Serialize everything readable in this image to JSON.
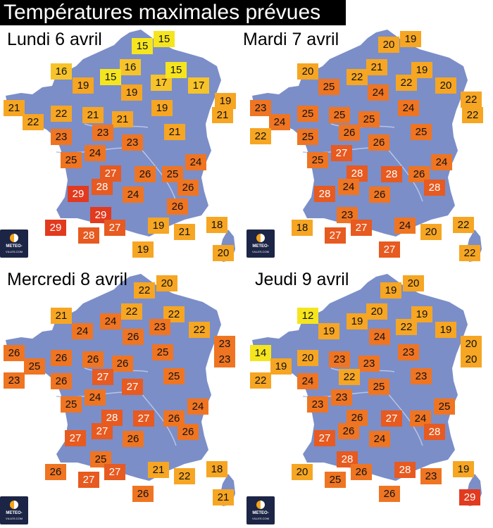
{
  "title": "Températures maximales prévues",
  "logo": {
    "line1": "METEO-",
    "line2": "VILLES.COM"
  },
  "colors": {
    "land": "#7b8ec8",
    "t12_15": "#f5e51f",
    "t16_17": "#f7c32a",
    "t18_22": "#f6a623",
    "t23_26": "#ef7522",
    "t27_28": "#e75a20",
    "t29": "#e23a1e"
  },
  "panels": [
    {
      "label": "Lundi 6 avril",
      "temps": [
        15,
        15,
        16,
        16,
        15,
        19,
        19,
        17,
        15,
        17,
        21,
        22,
        22,
        21,
        21,
        19,
        19,
        21,
        23,
        23,
        23,
        21,
        25,
        24,
        27,
        24,
        26,
        25,
        28,
        29,
        24,
        26,
        29,
        29,
        28,
        27,
        26,
        19,
        21,
        18,
        19,
        20
      ]
    },
    {
      "label": "Mardi 7 avril",
      "temps": [
        20,
        19,
        20,
        21,
        25,
        22,
        22,
        19,
        20,
        24,
        22,
        23,
        24,
        25,
        25,
        25,
        24,
        22,
        25,
        26,
        26,
        25,
        25,
        27,
        24,
        28,
        28,
        26,
        28,
        24,
        26,
        28,
        23,
        27,
        24,
        20,
        22,
        18,
        27,
        27,
        22,
        22
      ]
    },
    {
      "label": "Mercredi 8 avril",
      "temps": [
        22,
        20,
        21,
        22,
        24,
        24,
        22,
        26,
        23,
        22,
        25,
        26,
        26,
        26,
        26,
        25,
        23,
        25,
        23,
        26,
        27,
        27,
        25,
        24,
        27,
        28,
        27,
        26,
        24,
        27,
        26,
        26,
        25,
        27,
        21,
        22,
        18,
        26,
        27,
        26,
        21,
        23
      ]
    },
    {
      "label": "Jeudi 9 avril",
      "temps": [
        19,
        20,
        12,
        20,
        19,
        19,
        19,
        24,
        22,
        19,
        14,
        20,
        23,
        23,
        23,
        20,
        20,
        19,
        24,
        22,
        25,
        23,
        23,
        23,
        25,
        26,
        27,
        24,
        28,
        27,
        26,
        24,
        28,
        26,
        28,
        23,
        19,
        20,
        25,
        26,
        29,
        22
      ]
    }
  ]
}
